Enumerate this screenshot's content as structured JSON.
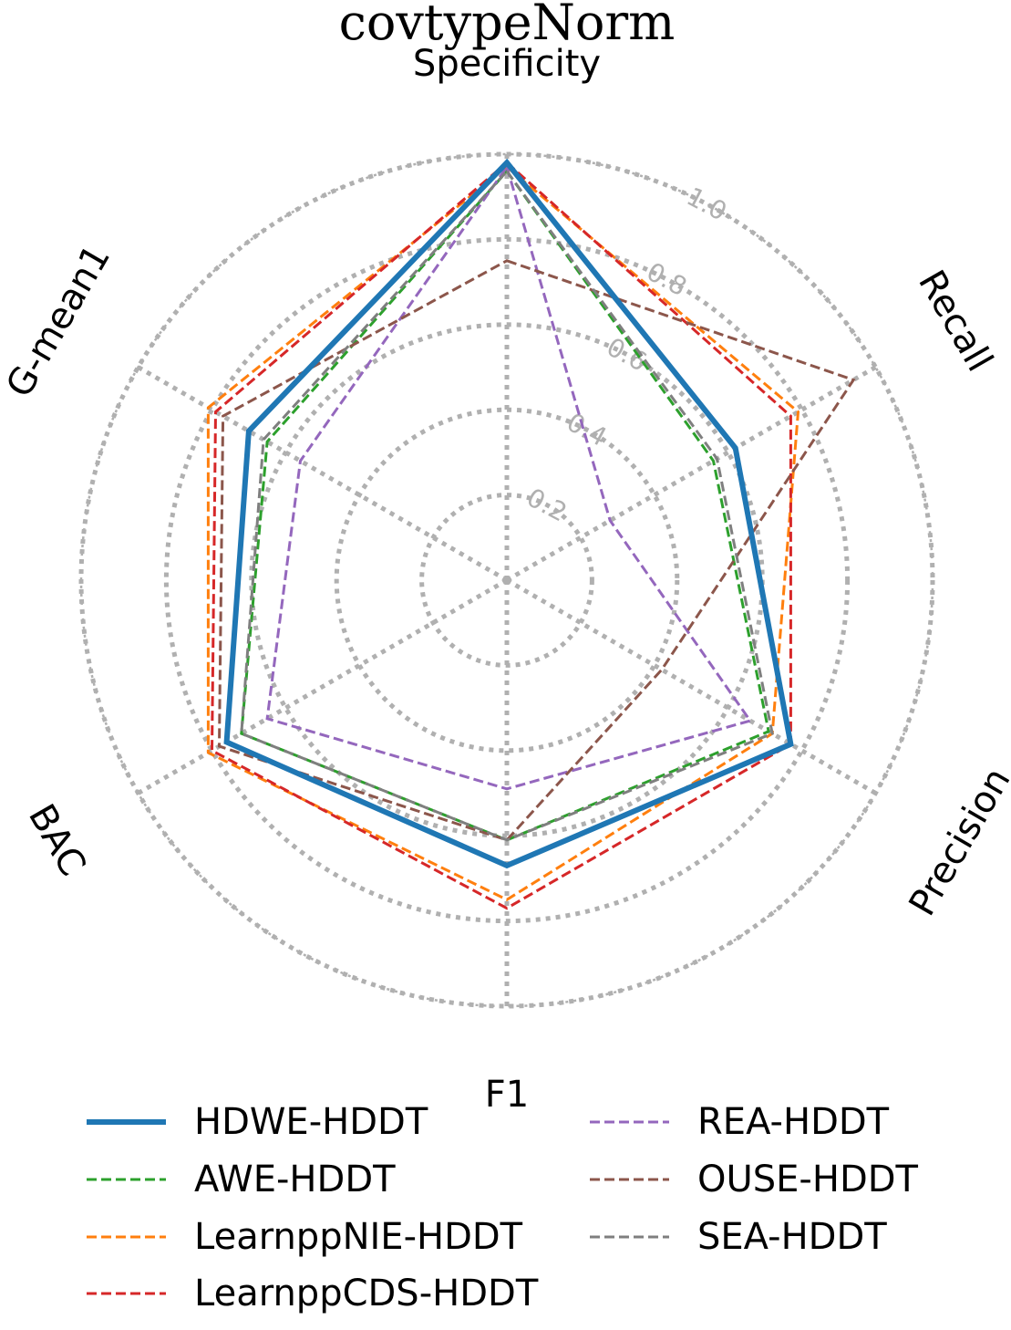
{
  "chart_data": {
    "type": "radar",
    "title": "covtypeNorm",
    "axes": [
      "Specificity",
      "Recall",
      "Precision",
      "F1",
      "BAC",
      "G-mean1"
    ],
    "r_ticks": [
      0.2,
      0.4,
      0.6,
      0.8,
      1.0
    ],
    "r_tick_labels": [
      "0.2",
      "0.4",
      "0.6",
      "0.8",
      "1.0"
    ],
    "r_max": 1.0,
    "legend_position": "bottom",
    "series": [
      {
        "name": "HDWE-HDDT",
        "color": "#1f77b4",
        "style": "solid",
        "values": [
          0.98,
          0.62,
          0.77,
          0.67,
          0.76,
          0.7
        ]
      },
      {
        "name": "AWE-HDDT",
        "color": "#2ca02c",
        "style": "dashed",
        "values": [
          0.96,
          0.56,
          0.71,
          0.61,
          0.72,
          0.65
        ]
      },
      {
        "name": "LearnppNIE-HDDT",
        "color": "#ff7f0e",
        "style": "dashed",
        "values": [
          0.97,
          0.79,
          0.72,
          0.75,
          0.81,
          0.81
        ]
      },
      {
        "name": "LearnppCDS-HDDT",
        "color": "#d62728",
        "style": "dashed",
        "values": [
          0.98,
          0.77,
          0.77,
          0.77,
          0.8,
          0.79
        ]
      },
      {
        "name": "REA-HDDT",
        "color": "#9467bd",
        "style": "dashed",
        "values": [
          0.97,
          0.28,
          0.66,
          0.49,
          0.65,
          0.56
        ]
      },
      {
        "name": "OUSE-HDDT",
        "color": "#8c564b",
        "style": "dashed",
        "values": [
          0.75,
          0.94,
          0.42,
          0.61,
          0.78,
          0.77
        ]
      },
      {
        "name": "SEA-HDDT",
        "color": "#7f7f7f",
        "style": "dashed",
        "values": [
          0.96,
          0.57,
          0.72,
          0.61,
          0.72,
          0.66
        ]
      }
    ]
  }
}
